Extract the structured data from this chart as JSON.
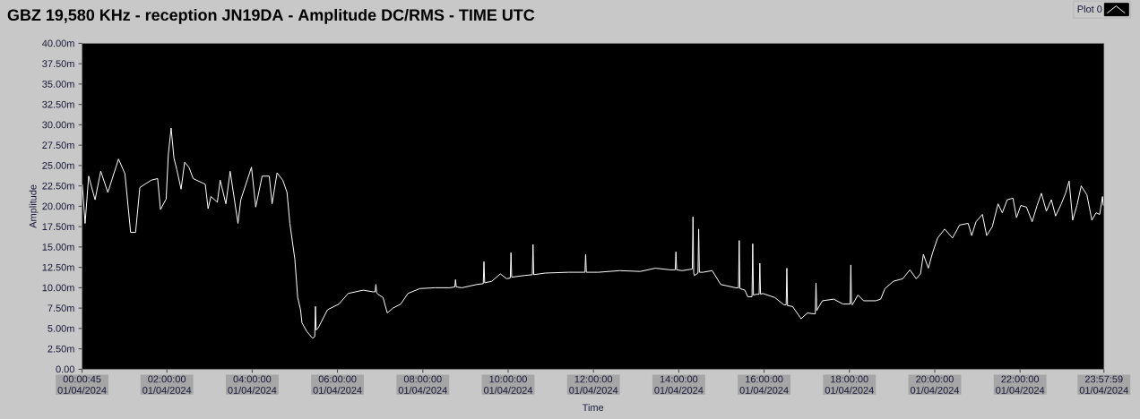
{
  "chart_data": {
    "type": "line",
    "title": "GBZ  19,580 KHz - reception JN19DA -  Amplitude DC/RMS   - TIME UTC",
    "xlabel": "Time",
    "ylabel": "Amplitude",
    "x": [
      "2024-04-01T00:01",
      "2024-04-01T00:05",
      "2024-04-01T00:10",
      "2024-04-01T00:19",
      "2024-04-01T00:27",
      "2024-04-01T00:37",
      "2024-04-01T00:52",
      "2024-04-01T01:01",
      "2024-04-01T01:09",
      "2024-04-01T01:16",
      "2024-04-01T01:22",
      "2024-04-01T01:38",
      "2024-04-01T01:47",
      "2024-04-01T01:51",
      "2024-04-01T01:59",
      "2024-04-01T02:02",
      "2024-04-01T02:06",
      "2024-04-01T02:10",
      "2024-04-01T02:14",
      "2024-04-01T02:20",
      "2024-04-01T02:25",
      "2024-04-01T02:31",
      "2024-04-01T02:37",
      "2024-04-01T02:54",
      "2024-04-01T02:58",
      "2024-04-01T03:02",
      "2024-04-01T03:11",
      "2024-04-01T03:15",
      "2024-04-01T03:23",
      "2024-04-01T03:29",
      "2024-04-01T03:40",
      "2024-04-01T03:44",
      "2024-04-01T03:59",
      "2024-04-01T04:05",
      "2024-04-01T04:14",
      "2024-04-01T04:24",
      "2024-04-01T04:28",
      "2024-04-01T04:35",
      "2024-04-01T04:43",
      "2024-04-01T04:49",
      "2024-04-01T04:53",
      "2024-04-01T05:00",
      "2024-04-01T05:04",
      "2024-04-01T05:08",
      "2024-04-01T05:10",
      "2024-04-01T05:17",
      "2024-04-01T05:25",
      "2024-04-01T05:28",
      "2024-04-01T05:29",
      "2024-04-01T05:30",
      "2024-04-01T05:33",
      "2024-04-01T05:46",
      "2024-04-01T06:02",
      "2024-04-01T06:15",
      "2024-04-01T06:36",
      "2024-04-01T06:50",
      "2024-04-01T06:53",
      "2024-04-01T06:54",
      "2024-04-01T06:55",
      "2024-04-01T06:57",
      "2024-04-01T07:04",
      "2024-04-01T07:10",
      "2024-04-01T07:18",
      "2024-04-01T07:29",
      "2024-04-01T07:39",
      "2024-04-01T07:56",
      "2024-04-01T08:17",
      "2024-04-01T08:38",
      "2024-04-01T08:45",
      "2024-04-01T08:46",
      "2024-04-01T08:47",
      "2024-04-01T08:55",
      "2024-04-01T09:16",
      "2024-04-01T09:25",
      "2024-04-01T09:26",
      "2024-04-01T09:27",
      "2024-04-01T09:37",
      "2024-04-01T09:49",
      "2024-04-01T09:58",
      "2024-04-01T10:03",
      "2024-04-01T10:04",
      "2024-04-01T10:05",
      "2024-04-01T10:23",
      "2024-04-01T10:34",
      "2024-04-01T10:35",
      "2024-04-01T10:36",
      "2024-04-01T10:52",
      "2024-04-01T11:25",
      "2024-04-01T11:48",
      "2024-04-01T11:49",
      "2024-04-01T11:50",
      "2024-04-01T12:07",
      "2024-04-01T12:37",
      "2024-04-01T13:06",
      "2024-04-01T13:27",
      "2024-04-01T13:48",
      "2024-04-01T13:55",
      "2024-04-01T13:56",
      "2024-04-01T13:57",
      "2024-04-01T14:05",
      "2024-04-01T14:19",
      "2024-04-01T14:20",
      "2024-04-01T14:21",
      "2024-04-01T14:22",
      "2024-04-01T14:27",
      "2024-04-01T14:28",
      "2024-04-01T14:29",
      "2024-04-01T14:34",
      "2024-04-01T14:47",
      "2024-04-01T14:59",
      "2024-04-01T15:20",
      "2024-04-01T15:24",
      "2024-04-01T15:25",
      "2024-04-01T15:26",
      "2024-04-01T15:33",
      "2024-04-01T15:37",
      "2024-04-01T15:43",
      "2024-04-01T15:44",
      "2024-04-01T15:45",
      "2024-04-01T15:49",
      "2024-04-01T15:53",
      "2024-04-01T15:54",
      "2024-04-01T15:55",
      "2024-04-01T15:58",
      "2024-04-01T16:15",
      "2024-04-01T16:28",
      "2024-04-01T16:31",
      "2024-04-01T16:32",
      "2024-04-01T16:33",
      "2024-04-01T16:40",
      "2024-04-01T16:52",
      "2024-04-01T17:01",
      "2024-04-01T17:10",
      "2024-04-01T17:12",
      "2024-04-01T17:13",
      "2024-04-01T17:14",
      "2024-04-01T17:22",
      "2024-04-01T17:38",
      "2024-04-01T17:51",
      "2024-04-01T18:01",
      "2024-04-01T18:02",
      "2024-04-01T18:03",
      "2024-04-01T18:04",
      "2024-04-01T18:12",
      "2024-04-01T18:20",
      "2024-04-01T18:37",
      "2024-04-01T18:44",
      "2024-04-01T18:50",
      "2024-04-01T19:02",
      "2024-04-01T19:15",
      "2024-04-01T19:25",
      "2024-04-01T19:34",
      "2024-04-01T19:40",
      "2024-04-01T19:44",
      "2024-04-01T19:51",
      "2024-04-01T19:57",
      "2024-04-01T20:04",
      "2024-04-01T20:14",
      "2024-04-01T20:25",
      "2024-04-01T20:35",
      "2024-04-01T20:47",
      "2024-04-01T20:52",
      "2024-04-01T20:58",
      "2024-04-01T21:07",
      "2024-04-01T21:13",
      "2024-04-01T21:21",
      "2024-04-01T21:29",
      "2024-04-01T21:35",
      "2024-04-01T21:42",
      "2024-04-01T21:50",
      "2024-04-01T21:55",
      "2024-04-01T22:01",
      "2024-04-01T22:09",
      "2024-04-01T22:17",
      "2024-04-01T22:24",
      "2024-04-01T22:30",
      "2024-04-01T22:37",
      "2024-04-01T22:44",
      "2024-04-01T22:50",
      "2024-04-01T22:58",
      "2024-04-01T23:04",
      "2024-04-01T23:09",
      "2024-04-01T23:14",
      "2024-04-01T23:20",
      "2024-04-01T23:26",
      "2024-04-01T23:34",
      "2024-04-01T23:41",
      "2024-04-01T23:47",
      "2024-04-01T23:52",
      "2024-04-01T23:56",
      "2024-04-01T23:57"
    ],
    "series": [
      {
        "name": "Plot 0",
        "color": "#ffffff",
        "values": [
          22.7,
          17.9,
          23.7,
          20.8,
          24.3,
          21.7,
          25.8,
          24.0,
          16.8,
          16.8,
          22.3,
          23.2,
          23.4,
          19.6,
          20.9,
          26.3,
          29.6,
          25.9,
          24.5,
          22.1,
          25.4,
          24.8,
          23.4,
          22.7,
          19.7,
          21.2,
          20.5,
          23.2,
          20.3,
          24.3,
          17.9,
          20.8,
          24.8,
          19.9,
          23.7,
          23.7,
          20.3,
          24.1,
          23.2,
          21.7,
          17.9,
          13.5,
          8.8,
          7.3,
          5.7,
          4.6,
          3.8,
          4.0,
          7.7,
          4.8,
          5.1,
          7.3,
          8.0,
          9.3,
          9.7,
          9.5,
          9.5,
          10.4,
          9.4,
          9.2,
          8.8,
          6.9,
          7.5,
          8.0,
          9.3,
          9.9,
          10.0,
          10.0,
          10.1,
          11.0,
          10.1,
          10.0,
          10.4,
          10.5,
          13.2,
          10.6,
          10.8,
          11.7,
          11.1,
          11.2,
          14.3,
          11.3,
          11.5,
          11.6,
          15.3,
          11.6,
          11.8,
          11.9,
          11.9,
          14.1,
          11.9,
          11.9,
          12.1,
          12.0,
          12.4,
          12.2,
          12.2,
          14.4,
          12.2,
          12.1,
          12.3,
          18.7,
          11.8,
          11.5,
          11.8,
          17.2,
          11.9,
          11.9,
          12.1,
          10.4,
          10.0,
          10.0,
          15.8,
          9.9,
          9.7,
          8.9,
          8.9,
          15.4,
          9.1,
          9.2,
          9.2,
          13.0,
          9.2,
          9.3,
          8.8,
          7.9,
          7.9,
          12.4,
          7.8,
          7.7,
          6.2,
          6.9,
          6.8,
          6.8,
          10.6,
          7.2,
          8.4,
          8.6,
          8.0,
          8.0,
          12.8,
          8.0,
          7.9,
          9.1,
          8.4,
          8.4,
          8.6,
          9.9,
          10.8,
          11.1,
          12.2,
          11.1,
          11.7,
          14.1,
          12.4,
          14.3,
          16.1,
          17.2,
          16.1,
          17.7,
          17.9,
          16.4,
          18.1,
          19.0,
          16.4,
          17.5,
          20.3,
          19.2,
          20.8,
          21.0,
          18.6,
          20.1,
          19.9,
          18.1,
          20.1,
          21.6,
          19.4,
          20.8,
          18.8,
          20.3,
          21.6,
          23.1,
          18.3,
          20.1,
          22.5,
          21.4,
          18.3,
          19.2,
          19.0,
          21.2,
          20.1
        ]
      }
    ],
    "xlim": [
      "2024-04-01T00:00:45",
      "2024-04-01T23:57:59"
    ],
    "ylim": [
      0,
      40
    ],
    "xticks": [
      {
        "value": "2024-04-01T00:00:45",
        "label": "00:00:45 01/04/2024"
      },
      {
        "value": "2024-04-01T02:00:00",
        "label": "02:00:00 01/04/2024"
      },
      {
        "value": "2024-04-01T04:00:00",
        "label": "04:00:00 01/04/2024"
      },
      {
        "value": "2024-04-01T06:00:00",
        "label": "06:00:00 01/04/2024"
      },
      {
        "value": "2024-04-01T08:00:00",
        "label": "08:00:00 01/04/2024"
      },
      {
        "value": "2024-04-01T10:00:00",
        "label": "10:00:00 01/04/2024"
      },
      {
        "value": "2024-04-01T12:00:00",
        "label": "12:00:00 01/04/2024"
      },
      {
        "value": "2024-04-01T14:00:00",
        "label": "14:00:00 01/04/2024"
      },
      {
        "value": "2024-04-01T16:00:00",
        "label": "16:00:00 01/04/2024"
      },
      {
        "value": "2024-04-01T18:00:00",
        "label": "18:00:00 01/04/2024"
      },
      {
        "value": "2024-04-01T20:00:00",
        "label": "20:00:00 01/04/2024"
      },
      {
        "value": "2024-04-01T22:00:00",
        "label": "22:00:00 01/04/2024"
      },
      {
        "value": "2024-04-01T23:57:59",
        "label": "23:57:59 01/04/2024"
      }
    ],
    "yticks": [
      {
        "value": 0,
        "label": "0.00"
      },
      {
        "value": 2.5,
        "label": "2.50m"
      },
      {
        "value": 5,
        "label": "5.00m"
      },
      {
        "value": 7.5,
        "label": "7.50m"
      },
      {
        "value": 10,
        "label": "10.00m"
      },
      {
        "value": 12.5,
        "label": "12.50m"
      },
      {
        "value": 15,
        "label": "15.00m"
      },
      {
        "value": 17.5,
        "label": "17.50m"
      },
      {
        "value": 20,
        "label": "20.00m"
      },
      {
        "value": 22.5,
        "label": "22.50m"
      },
      {
        "value": 25,
        "label": "25.00m"
      },
      {
        "value": 27.5,
        "label": "27.50m"
      },
      {
        "value": 30,
        "label": "30.00m"
      },
      {
        "value": 32.5,
        "label": "32.50m"
      },
      {
        "value": 35,
        "label": "35.00m"
      },
      {
        "value": 37.5,
        "label": "37.50m"
      },
      {
        "value": 40,
        "label": "40.00m"
      }
    ],
    "legend": "top right",
    "line_style": "solid"
  }
}
